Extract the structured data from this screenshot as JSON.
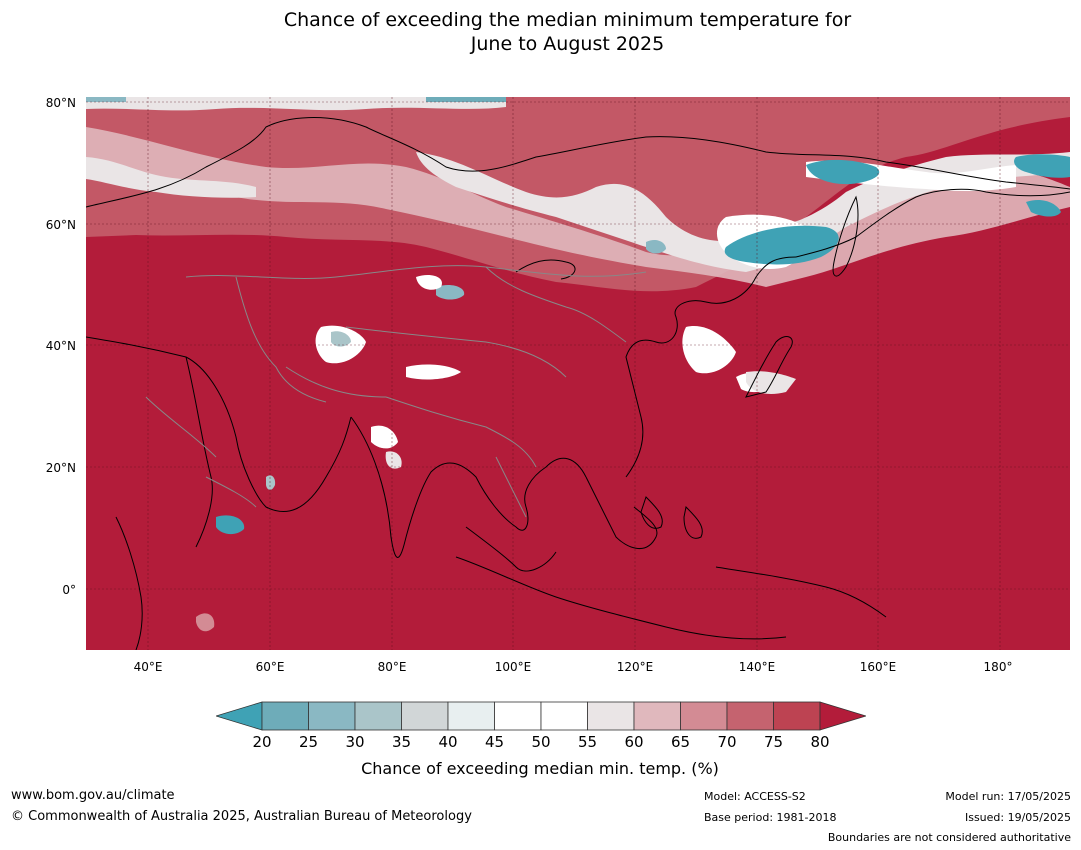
{
  "title": {
    "line1": "Chance of exceeding the median minimum temperature for",
    "line2": "June to August 2025"
  },
  "map": {
    "lat_labels": [
      "80°N",
      "60°N",
      "40°N",
      "20°N",
      "0°"
    ],
    "lon_labels": [
      "40°E",
      "60°E",
      "80°E",
      "100°E",
      "120°E",
      "140°E",
      "160°E",
      "180°"
    ],
    "base_color": "#b31c3a"
  },
  "colorbar": {
    "ticks": [
      "20",
      "25",
      "30",
      "35",
      "40",
      "45",
      "50",
      "55",
      "60",
      "65",
      "70",
      "75",
      "80"
    ],
    "colors": [
      "#3fa2b5",
      "#6eacb9",
      "#8ab8c3",
      "#aac5c9",
      "#d1d6d7",
      "#e8eff0",
      "#ffffff",
      "#ffffff",
      "#eae5e6",
      "#e0b8bd",
      "#d38b94",
      "#c5636f",
      "#bd4352",
      "#b31c3a"
    ],
    "label": "Chance of exceeding median min. temp. (%)"
  },
  "footer": {
    "website": "www.bom.gov.au/climate",
    "copyright": "© Commonwealth of Australia 2025, Australian Bureau of Meteorology",
    "model": "Model: ACCESS-S2",
    "base_period": "Base period: 1981-2018",
    "model_run": "Model run: 17/05/2025",
    "issued": "Issued: 19/05/2025",
    "disclaimer": "Boundaries are not considered authoritative"
  }
}
